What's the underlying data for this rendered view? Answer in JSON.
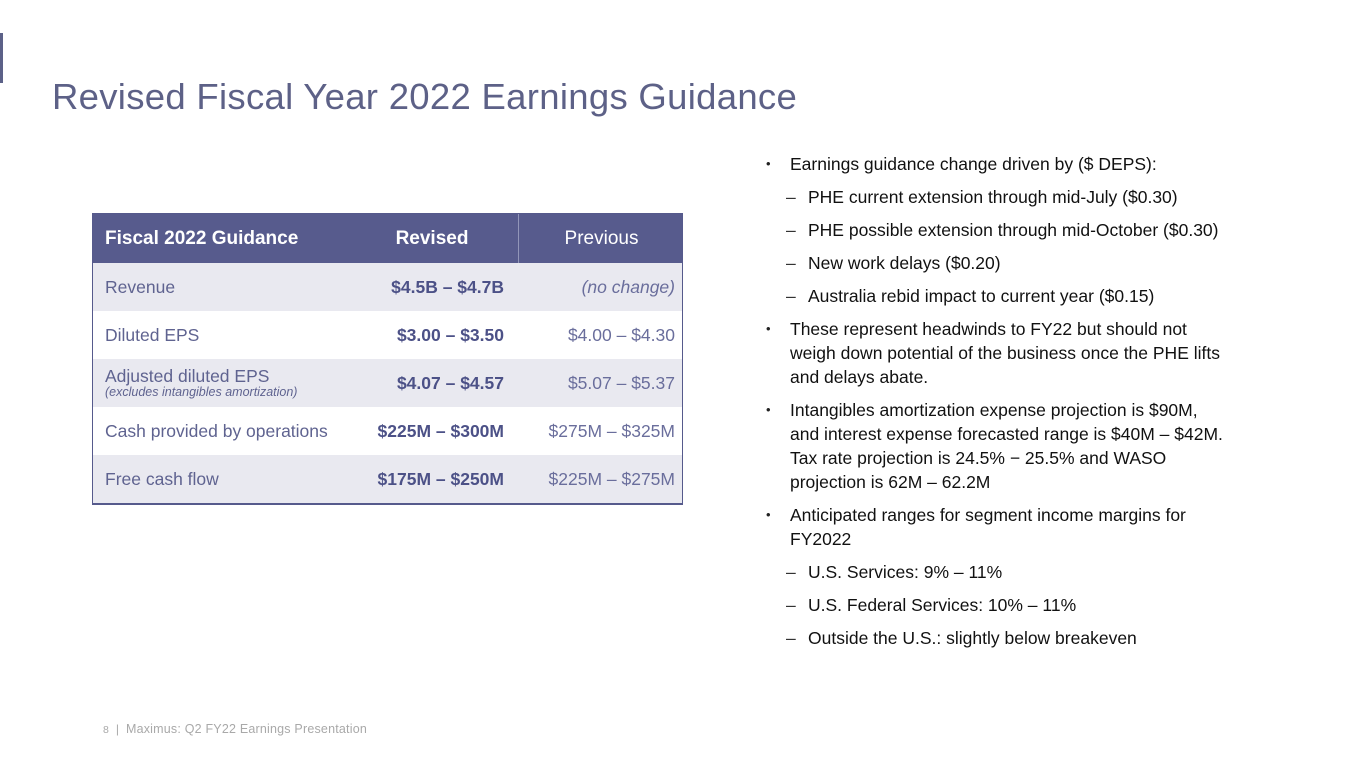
{
  "slide": {
    "title": "Revised Fiscal Year 2022 Earnings Guidance",
    "accent_color": "#5c6188",
    "header_bg_color": "#575b8d",
    "row_alt_bg_color": "#e9e9f0",
    "table_text_color": "#5f6390"
  },
  "table": {
    "headers": {
      "label": "Fiscal 2022 Guidance",
      "revised": "Revised",
      "previous": "Previous"
    },
    "rows": [
      {
        "label": "Revenue",
        "sublabel": "",
        "revised": "$4.5B – $4.7B",
        "previous": "(no change)",
        "previous_italic": true
      },
      {
        "label": "Diluted EPS",
        "sublabel": "",
        "revised": "$3.00 – $3.50",
        "previous": "$4.00 – $4.30",
        "previous_italic": false
      },
      {
        "label": "Adjusted diluted EPS",
        "sublabel": "(excludes intangibles amortization)",
        "revised": "$4.07 – $4.57",
        "previous": "$5.07 – $5.37",
        "previous_italic": false
      },
      {
        "label": "Cash provided by operations",
        "sublabel": "",
        "revised": "$225M – $300M",
        "previous": "$275M – $325M",
        "previous_italic": false
      },
      {
        "label": "Free cash flow",
        "sublabel": "",
        "revised": "$175M – $250M",
        "previous": "$225M – $275M",
        "previous_italic": false
      }
    ]
  },
  "markers": {
    "level1": "•",
    "level2": "–"
  },
  "bullets": [
    {
      "level": 1,
      "text": "Earnings guidance change driven by ($ DEPS):"
    },
    {
      "level": 2,
      "text": "PHE current extension through mid-July ($0.30)"
    },
    {
      "level": 2,
      "text": "PHE possible extension through mid-October ($0.30)"
    },
    {
      "level": 2,
      "text": "New work delays ($0.20)"
    },
    {
      "level": 2,
      "text": "Australia rebid impact to current year ($0.15)"
    },
    {
      "level": 1,
      "text": "These represent headwinds to FY22 but should not\nweigh down potential of the business once the PHE lifts\nand delays abate."
    },
    {
      "level": 1,
      "text": "Intangibles amortization expense projection is $90M,\nand interest expense forecasted range is $40M – $42M.\nTax rate projection is 24.5% − 25.5% and WASO\nprojection is 62M – 62.2M"
    },
    {
      "level": 1,
      "text": "Anticipated ranges for segment income margins for\nFY2022"
    },
    {
      "level": 2,
      "text": "U.S. Services: 9% – 11%"
    },
    {
      "level": 2,
      "text": "U.S. Federal Services: 10% – 11%"
    },
    {
      "level": 2,
      "text": "Outside the U.S.: slightly below breakeven"
    }
  ],
  "footer": {
    "page_number": "8",
    "separator": "|",
    "text": "Maximus: Q2 FY22 Earnings Presentation"
  }
}
